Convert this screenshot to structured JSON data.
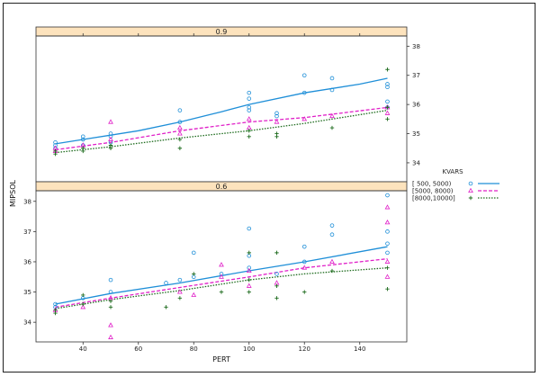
{
  "chart_data": {
    "type": "scatter",
    "xlabel": "PERT",
    "ylabel": "MIPSOL",
    "xlim": [
      23,
      157
    ],
    "ylim": [
      33.35,
      38.35
    ],
    "x_ticks": [
      40,
      60,
      80,
      100,
      120,
      140
    ],
    "x_tick_labels": [
      "40",
      "60",
      "80",
      "100",
      "120",
      "140"
    ],
    "y_ticks": [
      34,
      35,
      36,
      37,
      38
    ],
    "y_tick_labels": [
      "34",
      "35",
      "36",
      "37",
      "38"
    ],
    "legend": {
      "title": "KVARS",
      "entries": [
        {
          "label": "[ 500, 5000)",
          "color": "#1f8fd8",
          "marker": "circle",
          "line": "solid"
        },
        {
          "label": "[5000, 8000)",
          "color": "#e020c8",
          "marker": "triangle",
          "line": "dashed"
        },
        {
          "label": "[8000,10000]",
          "color": "#1d6b1d",
          "marker": "plus",
          "line": "dotted"
        }
      ]
    },
    "panels": [
      {
        "strip": "0.9",
        "series": [
          {
            "name": "[ 500, 5000)",
            "fit": [
              [
                30,
                34.65
              ],
              [
                40,
                34.8
              ],
              [
                50,
                34.95
              ],
              [
                60,
                35.1
              ],
              [
                75,
                35.4
              ],
              [
                90,
                35.75
              ],
              [
                100,
                36.0
              ],
              [
                120,
                36.4
              ],
              [
                140,
                36.7
              ],
              [
                150,
                36.9
              ]
            ],
            "points": [
              [
                30,
                34.7
              ],
              [
                30,
                34.6
              ],
              [
                30,
                34.5
              ],
              [
                40,
                34.9
              ],
              [
                40,
                34.8
              ],
              [
                40,
                34.6
              ],
              [
                50,
                35.0
              ],
              [
                50,
                34.9
              ],
              [
                50,
                34.7
              ],
              [
                75,
                35.8
              ],
              [
                75,
                35.4
              ],
              [
                100,
                36.4
              ],
              [
                100,
                36.2
              ],
              [
                100,
                35.9
              ],
              [
                100,
                35.8
              ],
              [
                110,
                35.7
              ],
              [
                110,
                35.6
              ],
              [
                120,
                37.0
              ],
              [
                120,
                36.4
              ],
              [
                130,
                36.9
              ],
              [
                130,
                36.5
              ],
              [
                150,
                36.7
              ],
              [
                150,
                36.6
              ],
              [
                150,
                36.1
              ],
              [
                150,
                35.9
              ]
            ]
          },
          {
            "name": "[5000, 8000)",
            "fit": [
              [
                30,
                34.45
              ],
              [
                50,
                34.7
              ],
              [
                75,
                35.1
              ],
              [
                100,
                35.4
              ],
              [
                120,
                35.55
              ],
              [
                150,
                35.9
              ]
            ],
            "points": [
              [
                30,
                34.4
              ],
              [
                30,
                34.5
              ],
              [
                40,
                34.6
              ],
              [
                50,
                35.4
              ],
              [
                50,
                34.8
              ],
              [
                75,
                35.2
              ],
              [
                75,
                35.0
              ],
              [
                100,
                35.5
              ],
              [
                100,
                35.2
              ],
              [
                110,
                35.4
              ],
              [
                120,
                35.5
              ],
              [
                130,
                35.6
              ],
              [
                150,
                35.9
              ],
              [
                150,
                35.7
              ]
            ]
          },
          {
            "name": "[8000,10000]",
            "fit": [
              [
                30,
                34.35
              ],
              [
                50,
                34.55
              ],
              [
                75,
                34.85
              ],
              [
                100,
                35.1
              ],
              [
                120,
                35.35
              ],
              [
                150,
                35.8
              ]
            ],
            "points": [
              [
                30,
                34.3
              ],
              [
                30,
                34.4
              ],
              [
                40,
                34.4
              ],
              [
                40,
                34.5
              ],
              [
                50,
                34.5
              ],
              [
                50,
                34.6
              ],
              [
                75,
                34.5
              ],
              [
                75,
                34.8
              ],
              [
                100,
                34.9
              ],
              [
                100,
                35.1
              ],
              [
                110,
                34.9
              ],
              [
                110,
                35.0
              ],
              [
                130,
                35.2
              ],
              [
                150,
                37.2
              ],
              [
                150,
                35.9
              ],
              [
                150,
                35.5
              ]
            ]
          }
        ]
      },
      {
        "strip": "0.6",
        "series": [
          {
            "name": "[ 500, 5000)",
            "fit": [
              [
                30,
                34.6
              ],
              [
                50,
                34.95
              ],
              [
                75,
                35.3
              ],
              [
                100,
                35.7
              ],
              [
                120,
                36.0
              ],
              [
                150,
                36.5
              ]
            ],
            "points": [
              [
                30,
                34.6
              ],
              [
                30,
                34.5
              ],
              [
                40,
                34.8
              ],
              [
                50,
                35.4
              ],
              [
                50,
                35.0
              ],
              [
                70,
                35.3
              ],
              [
                75,
                35.4
              ],
              [
                80,
                36.3
              ],
              [
                80,
                35.5
              ],
              [
                90,
                35.6
              ],
              [
                100,
                37.1
              ],
              [
                100,
                36.2
              ],
              [
                100,
                35.8
              ],
              [
                110,
                35.6
              ],
              [
                120,
                36.5
              ],
              [
                120,
                36.0
              ],
              [
                130,
                37.2
              ],
              [
                130,
                36.9
              ],
              [
                150,
                38.2
              ],
              [
                150,
                37.0
              ],
              [
                150,
                36.6
              ],
              [
                150,
                36.3
              ]
            ]
          },
          {
            "name": "[5000, 8000)",
            "fit": [
              [
                30,
                34.5
              ],
              [
                50,
                34.8
              ],
              [
                75,
                35.15
              ],
              [
                100,
                35.5
              ],
              [
                120,
                35.8
              ],
              [
                150,
                36.1
              ]
            ],
            "points": [
              [
                30,
                34.4
              ],
              [
                40,
                34.5
              ],
              [
                50,
                33.9
              ],
              [
                50,
                33.5
              ],
              [
                50,
                34.8
              ],
              [
                75,
                35.0
              ],
              [
                80,
                34.9
              ],
              [
                90,
                35.9
              ],
              [
                90,
                35.5
              ],
              [
                100,
                35.7
              ],
              [
                100,
                35.2
              ],
              [
                110,
                35.3
              ],
              [
                120,
                35.8
              ],
              [
                130,
                36.0
              ],
              [
                150,
                37.8
              ],
              [
                150,
                37.3
              ],
              [
                150,
                36.0
              ],
              [
                150,
                35.5
              ]
            ]
          },
          {
            "name": "[8000,10000]",
            "fit": [
              [
                30,
                34.45
              ],
              [
                50,
                34.75
              ],
              [
                75,
                35.05
              ],
              [
                100,
                35.4
              ],
              [
                120,
                35.6
              ],
              [
                150,
                35.8
              ]
            ],
            "points": [
              [
                30,
                34.3
              ],
              [
                30,
                34.4
              ],
              [
                40,
                34.9
              ],
              [
                40,
                34.6
              ],
              [
                50,
                34.7
              ],
              [
                50,
                34.5
              ],
              [
                70,
                34.5
              ],
              [
                75,
                34.8
              ],
              [
                80,
                35.6
              ],
              [
                90,
                35.0
              ],
              [
                100,
                36.3
              ],
              [
                100,
                35.4
              ],
              [
                100,
                35.0
              ],
              [
                110,
                36.3
              ],
              [
                110,
                35.2
              ],
              [
                110,
                34.8
              ],
              [
                120,
                35.0
              ],
              [
                130,
                35.7
              ],
              [
                150,
                35.1
              ],
              [
                150,
                35.8
              ]
            ]
          }
        ]
      }
    ]
  }
}
